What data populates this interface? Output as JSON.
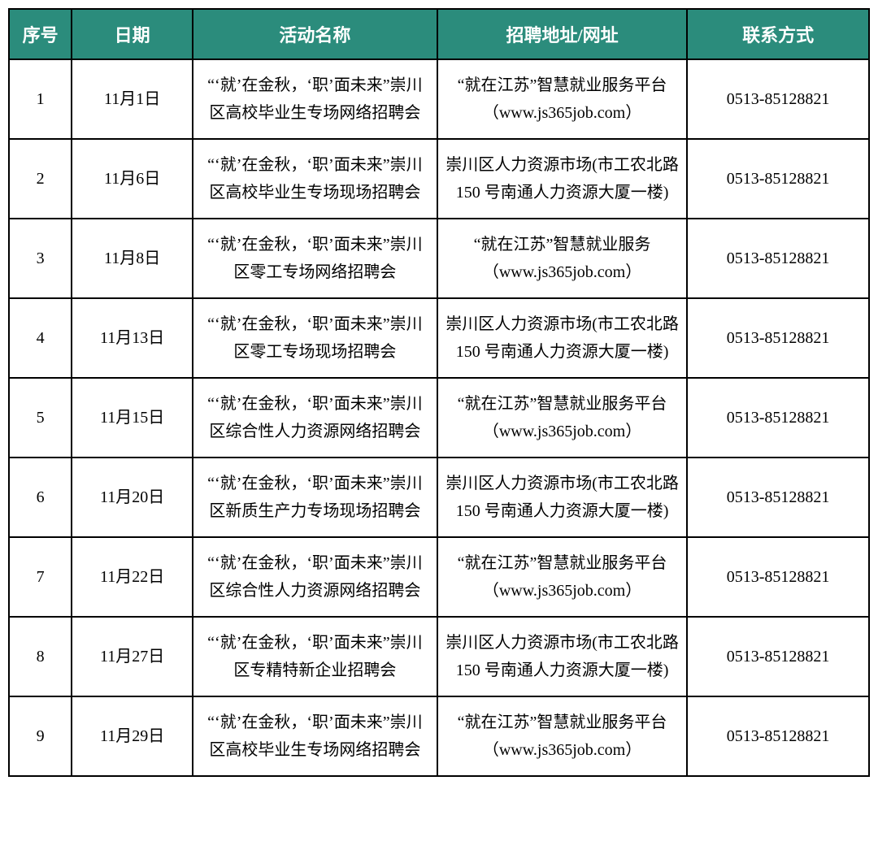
{
  "table": {
    "header_bg": "#2b8c7c",
    "header_fg": "#ffffff",
    "border_color": "#000000",
    "font_size_header": 22,
    "font_size_cell": 20,
    "columns": [
      "序号",
      "日期",
      "活动名称",
      "招聘地址/网址",
      "联系方式"
    ],
    "rows": [
      {
        "index": "1",
        "date": "11月1日",
        "name": "“‘就’在金秋，‘职’面未来”崇川区高校毕业生专场网络招聘会",
        "address": "“就在江苏”智慧就业服务平台（www.js365job.com）",
        "contact": "0513-85128821"
      },
      {
        "index": "2",
        "date": "11月6日",
        "name": "“‘就’在金秋，‘职’面未来”崇川区高校毕业生专场现场招聘会",
        "address": "崇川区人力资源市场(市工农北路 150 号南通人力资源大厦一楼)",
        "contact": "0513-85128821"
      },
      {
        "index": "3",
        "date": "11月8日",
        "name": "“‘就’在金秋，‘职’面未来”崇川区零工专场网络招聘会",
        "address": "“就在江苏”智慧就业服务（www.js365job.com）",
        "contact": "0513-85128821"
      },
      {
        "index": "4",
        "date": "11月13日",
        "name": "“‘就’在金秋，‘职’面未来”崇川区零工专场现场招聘会",
        "address": "崇川区人力资源市场(市工农北路 150 号南通人力资源大厦一楼)",
        "contact": "0513-85128821"
      },
      {
        "index": "5",
        "date": "11月15日",
        "name": "“‘就’在金秋，‘职’面未来”崇川区综合性人力资源网络招聘会",
        "address": "“就在江苏”智慧就业服务平台（www.js365job.com）",
        "contact": "0513-85128821"
      },
      {
        "index": "6",
        "date": "11月20日",
        "name": "“‘就’在金秋，‘职’面未来”崇川区新质生产力专场现场招聘会",
        "address": "崇川区人力资源市场(市工农北路 150 号南通人力资源大厦一楼)",
        "contact": "0513-85128821"
      },
      {
        "index": "7",
        "date": "11月22日",
        "name": "“‘就’在金秋，‘职’面未来”崇川区综合性人力资源网络招聘会",
        "address": "“就在江苏”智慧就业服务平台（www.js365job.com）",
        "contact": "0513-85128821"
      },
      {
        "index": "8",
        "date": "11月27日",
        "name": "“‘就’在金秋，‘职’面未来”崇川区专精特新企业招聘会",
        "address": "崇川区人力资源市场(市工农北路 150 号南通人力资源大厦一楼)",
        "contact": "0513-85128821"
      },
      {
        "index": "9",
        "date": "11月29日",
        "name": "“‘就’在金秋，‘职’面未来”崇川区高校毕业生专场网络招聘会",
        "address": "“就在江苏”智慧就业服务平台（www.js365job.com）",
        "contact": "0513-85128821"
      }
    ]
  }
}
